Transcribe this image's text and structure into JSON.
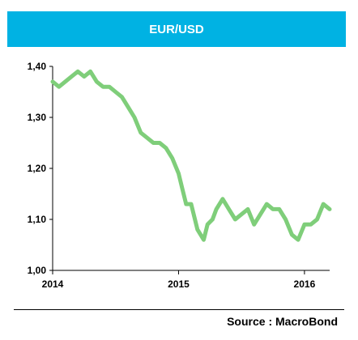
{
  "header": {
    "title": "EUR/USD"
  },
  "footer": {
    "source": "Source : MacroBond"
  },
  "colors": {
    "title_bar": "#00b2e3",
    "line": "#7fce7a"
  },
  "chart_data": {
    "type": "line",
    "title": "EUR/USD",
    "xlabel": "",
    "ylabel": "",
    "x_ticks": [
      "2014",
      "2015",
      "2016"
    ],
    "y_ticks": [
      "1,00",
      "1,10",
      "1,20",
      "1,30",
      "1,40"
    ],
    "xlim": [
      2014.0,
      2016.2
    ],
    "ylim": [
      1.0,
      1.4
    ],
    "grid": false,
    "legend": "none",
    "series": [
      {
        "name": "",
        "x": [
          2014.0,
          2014.05,
          2014.1,
          2014.15,
          2014.2,
          2014.25,
          2014.3,
          2014.35,
          2014.4,
          2014.45,
          2014.5,
          2014.55,
          2014.6,
          2014.65,
          2014.7,
          2014.75,
          2014.8,
          2014.85,
          2014.9,
          2014.95,
          2015.0,
          2015.03,
          2015.06,
          2015.1,
          2015.15,
          2015.2,
          2015.23,
          2015.27,
          2015.3,
          2015.35,
          2015.4,
          2015.45,
          2015.5,
          2015.55,
          2015.6,
          2015.65,
          2015.7,
          2015.75,
          2015.8,
          2015.85,
          2015.9,
          2015.95,
          2016.0,
          2016.05,
          2016.1,
          2016.15,
          2016.2
        ],
        "values": [
          1.37,
          1.36,
          1.37,
          1.38,
          1.39,
          1.38,
          1.39,
          1.37,
          1.36,
          1.36,
          1.35,
          1.34,
          1.32,
          1.3,
          1.27,
          1.26,
          1.25,
          1.25,
          1.24,
          1.22,
          1.19,
          1.16,
          1.13,
          1.13,
          1.08,
          1.06,
          1.09,
          1.1,
          1.12,
          1.14,
          1.12,
          1.1,
          1.11,
          1.12,
          1.09,
          1.11,
          1.13,
          1.12,
          1.12,
          1.1,
          1.07,
          1.06,
          1.09,
          1.09,
          1.1,
          1.13,
          1.12
        ]
      }
    ]
  }
}
